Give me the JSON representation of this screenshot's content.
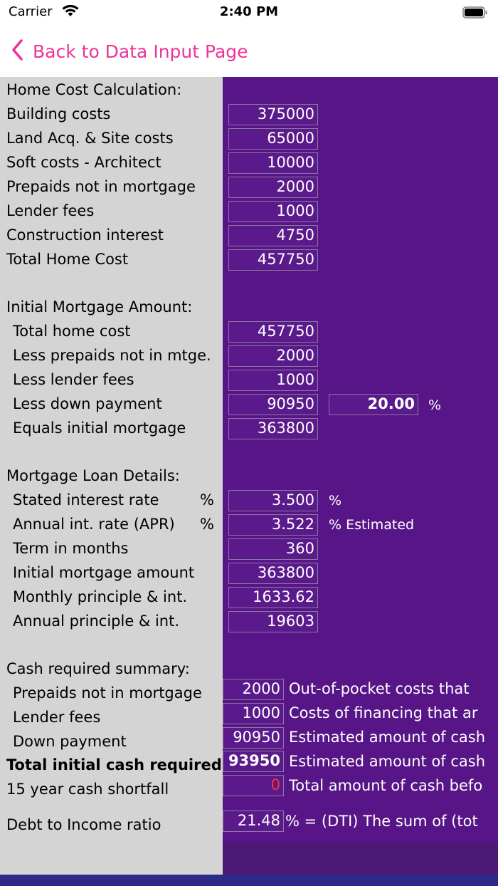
{
  "status_bar": {
    "carrier": "Carrier",
    "time": "2:40 PM"
  },
  "nav": {
    "back_label": "Back to Data Input Page"
  },
  "home_cost": {
    "header": "Home Cost Calculation:",
    "rows": [
      {
        "label": "Building costs",
        "value": "375000"
      },
      {
        "label": "Land Acq. & Site costs",
        "value": "65000"
      },
      {
        "label": "Soft costs - Architect",
        "value": "10000"
      },
      {
        "label": "Prepaids not in mortgage",
        "value": "2000"
      },
      {
        "label": "Lender fees",
        "value": "1000"
      },
      {
        "label": "Construction interest",
        "value": "4750"
      },
      {
        "label": "Total Home Cost",
        "value": "457750"
      }
    ]
  },
  "initial_mortgage": {
    "header": "Initial Mortgage Amount:",
    "rows": [
      {
        "label": "Total home cost",
        "value": "457750"
      },
      {
        "label": "Less prepaids not in mtge.",
        "value": "2000"
      },
      {
        "label": "Less lender fees",
        "value": "1000"
      },
      {
        "label": "Less down payment",
        "value": "90950"
      },
      {
        "label": "Equals initial mortgage",
        "value": "363800"
      }
    ],
    "down_payment_percent": "20.00",
    "percent_unit": "%"
  },
  "loan_details": {
    "header": "Mortgage Loan Details:",
    "rows": [
      {
        "label": "Stated interest rate",
        "suffix": "%",
        "value": "3.500",
        "unit": "%"
      },
      {
        "label": "Annual int. rate (APR)",
        "suffix": "%",
        "value": "3.522",
        "unit": "% Estimated"
      },
      {
        "label": "Term in months",
        "value": "360"
      },
      {
        "label": "Initial mortgage amount",
        "value": "363800"
      },
      {
        "label": "Monthly principle & int.",
        "value": "1633.62"
      },
      {
        "label": "Annual principle & int.",
        "value": "19603"
      }
    ]
  },
  "cash_summary": {
    "header": "Cash required summary:",
    "rows": [
      {
        "label": "Prepaids not in mortgage",
        "value": "2000",
        "desc": "Out-of-pocket costs that"
      },
      {
        "label": "Lender fees",
        "value": "1000",
        "desc": "Costs of financing that ar"
      },
      {
        "label": "Down payment",
        "value": "90950",
        "desc": "Estimated amount of cash"
      },
      {
        "label": "Total initial cash required",
        "value": "93950",
        "desc": "Estimated amount of cash"
      },
      {
        "label": "15 year cash shortfall",
        "value": "0",
        "desc": "Total amount of cash befo"
      }
    ]
  },
  "dti": {
    "label": "Debt to Income ratio",
    "value": "21.48",
    "desc": "% = (DTI)  The sum of (tot"
  },
  "colors": {
    "accent": "#ee3399",
    "panel": "#571587",
    "label_bg": "#d4d4d4",
    "shortfall": "#ff3030"
  }
}
